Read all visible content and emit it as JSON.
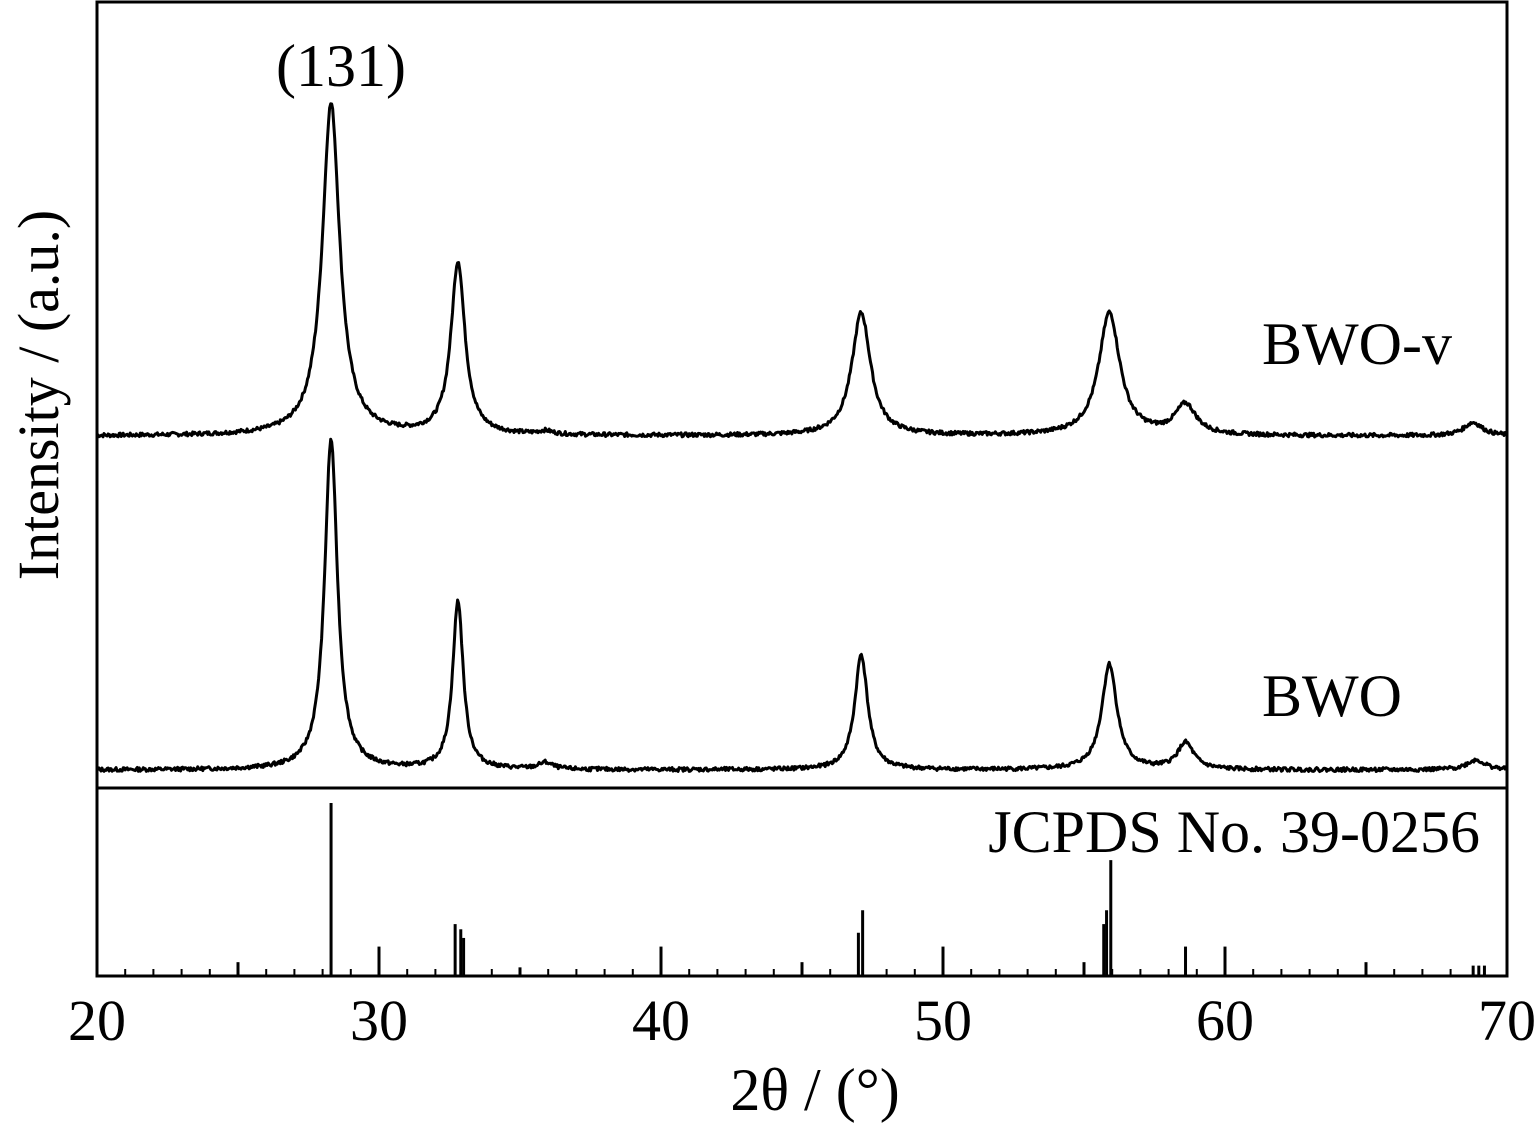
{
  "chart_data": {
    "type": "line",
    "xlabel": "2θ / (°)",
    "ylabel": "Intensity / (a.u.)",
    "xlim": [
      20,
      70
    ],
    "x_ticks": [
      20,
      30,
      40,
      50,
      60,
      70
    ],
    "y_ticks": "none",
    "grid": false,
    "annotations": [
      {
        "text": "(131)",
        "x": 28.3
      }
    ],
    "series": [
      {
        "name": "BWO-v",
        "peaks": [
          {
            "two_theta": 28.3,
            "height": 1.0,
            "fwhm": 0.75
          },
          {
            "two_theta": 32.8,
            "height": 0.52,
            "fwhm": 0.6
          },
          {
            "two_theta": 35.9,
            "height": 0.01,
            "fwhm": 0.6
          },
          {
            "two_theta": 47.1,
            "height": 0.37,
            "fwhm": 0.8
          },
          {
            "two_theta": 55.9,
            "height": 0.37,
            "fwhm": 0.9
          },
          {
            "two_theta": 58.6,
            "height": 0.09,
            "fwhm": 0.9
          },
          {
            "two_theta": 68.8,
            "height": 0.04,
            "fwhm": 0.8
          }
        ]
      },
      {
        "name": "BWO",
        "peaks": [
          {
            "two_theta": 28.3,
            "height": 1.0,
            "fwhm": 0.55
          },
          {
            "two_theta": 32.8,
            "height": 0.51,
            "fwhm": 0.45
          },
          {
            "two_theta": 35.9,
            "height": 0.02,
            "fwhm": 0.6
          },
          {
            "two_theta": 47.1,
            "height": 0.35,
            "fwhm": 0.55
          },
          {
            "two_theta": 55.9,
            "height": 0.32,
            "fwhm": 0.65
          },
          {
            "two_theta": 58.6,
            "height": 0.08,
            "fwhm": 0.7
          },
          {
            "two_theta": 68.9,
            "height": 0.03,
            "fwhm": 0.8
          }
        ]
      }
    ],
    "reference": {
      "label": "JCPDS No. 39-0256",
      "lines": [
        {
          "two_theta": 25.0,
          "intensity": 0.08
        },
        {
          "two_theta": 28.3,
          "intensity": 1.0
        },
        {
          "two_theta": 30.0,
          "intensity": 0.17
        },
        {
          "two_theta": 32.7,
          "intensity": 0.3
        },
        {
          "two_theta": 32.9,
          "intensity": 0.27
        },
        {
          "two_theta": 33.0,
          "intensity": 0.22
        },
        {
          "two_theta": 35.0,
          "intensity": 0.05
        },
        {
          "two_theta": 40.0,
          "intensity": 0.17
        },
        {
          "two_theta": 45.0,
          "intensity": 0.08
        },
        {
          "two_theta": 47.0,
          "intensity": 0.25
        },
        {
          "two_theta": 47.15,
          "intensity": 0.38
        },
        {
          "two_theta": 50.0,
          "intensity": 0.17
        },
        {
          "two_theta": 55.0,
          "intensity": 0.08
        },
        {
          "two_theta": 55.7,
          "intensity": 0.3
        },
        {
          "two_theta": 55.8,
          "intensity": 0.38
        },
        {
          "two_theta": 55.95,
          "intensity": 0.67
        },
        {
          "two_theta": 58.6,
          "intensity": 0.17
        },
        {
          "two_theta": 60.0,
          "intensity": 0.17
        },
        {
          "two_theta": 65.0,
          "intensity": 0.08
        },
        {
          "two_theta": 68.8,
          "intensity": 0.06
        },
        {
          "two_theta": 69.0,
          "intensity": 0.06
        },
        {
          "two_theta": 69.2,
          "intensity": 0.06
        }
      ]
    }
  }
}
